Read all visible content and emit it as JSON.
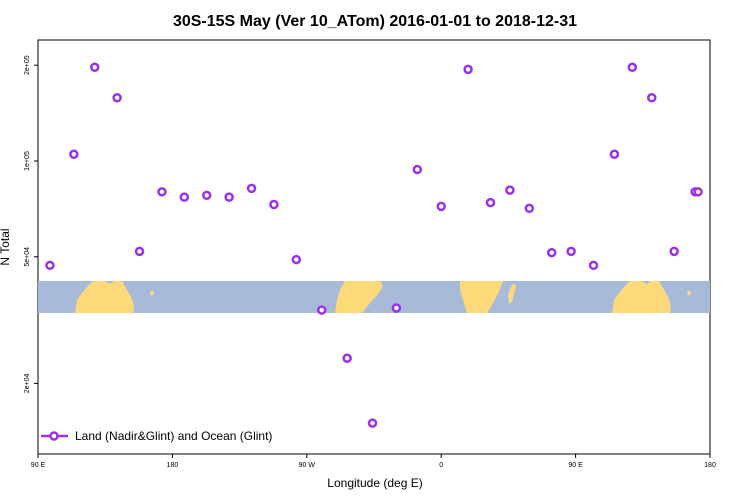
{
  "chart_data": {
    "type": "scatter",
    "title": "30S-15S May (Ver 10_ATom)   2016-01-01 to 2018-12-31",
    "xlabel": "Longitude (deg E)",
    "ylabel": "N Total",
    "xlim": [
      90,
      540
    ],
    "ylim_log": [
      12000,
      240000
    ],
    "x_ticks": [
      {
        "value": 90,
        "label": "90 E"
      },
      {
        "value": 180,
        "label": "180"
      },
      {
        "value": 270,
        "label": "90 W"
      },
      {
        "value": 360,
        "label": "0"
      },
      {
        "value": 450,
        "label": "90 E"
      },
      {
        "value": 540,
        "label": "180"
      }
    ],
    "y_ticks": [
      {
        "value": 20000,
        "label": "2e+04"
      },
      {
        "value": 50000,
        "label": "5e+04"
      },
      {
        "value": 100000,
        "label": "1e+05"
      },
      {
        "value": 200000,
        "label": "2e+05"
      }
    ],
    "grid": false,
    "legend_position": "bottom-left",
    "series": [
      {
        "name": "Land (Nadir&Glint) and Ocean (Glint)",
        "color": "#9b30e6",
        "x": [
          98,
          114,
          128,
          143,
          158,
          173,
          188,
          203,
          218,
          233,
          248,
          263,
          280,
          297,
          314,
          330,
          344,
          360,
          378,
          393,
          406,
          419,
          434,
          447,
          462,
          476,
          488,
          501,
          516,
          530,
          532
        ],
        "y": [
          47000,
          105000,
          197000,
          158000,
          52000,
          80000,
          77000,
          78000,
          77000,
          82000,
          73000,
          49000,
          34000,
          24000,
          15000,
          34500,
          94000,
          72000,
          194000,
          74000,
          81000,
          71000,
          51500,
          52000,
          47000,
          105000,
          197000,
          158000,
          52000,
          80000,
          80000
        ]
      }
    ],
    "map_strip": {
      "ocean_color": "#a7bbd9",
      "land_color": "#fdd97a",
      "lat_range": "30S-15S"
    }
  }
}
